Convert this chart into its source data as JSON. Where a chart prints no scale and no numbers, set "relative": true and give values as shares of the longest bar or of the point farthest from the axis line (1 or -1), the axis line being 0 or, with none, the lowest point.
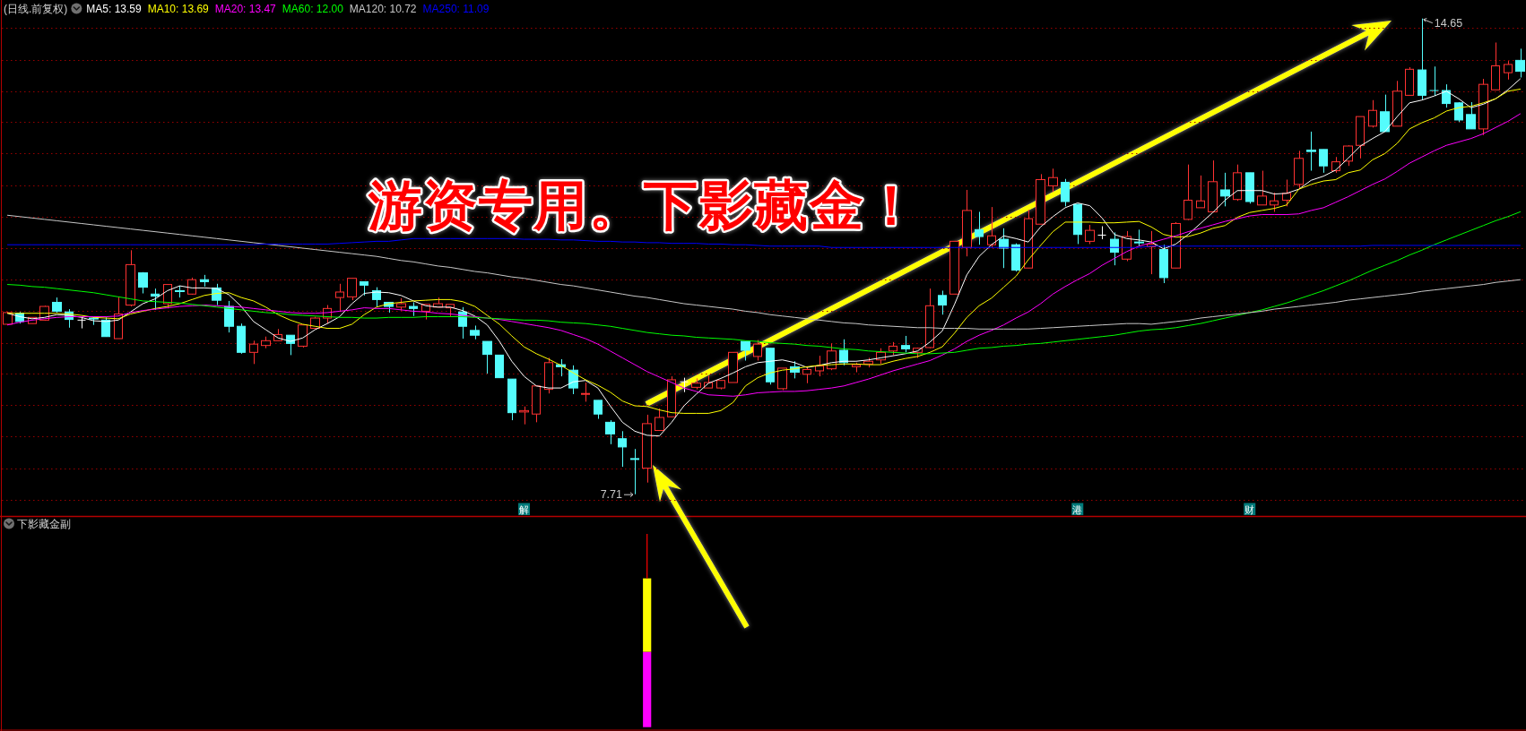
{
  "chart_data": [
    {
      "type": "candlestick",
      "title": "(日线.前复权)",
      "legend": "top left",
      "grid": true,
      "yticks": [
        {
          "value": 14.51,
          "label": null
        },
        {
          "value": 14.05,
          "label": null
        },
        {
          "value": 13.59,
          "label": null
        },
        {
          "value": 13.14,
          "label": null
        },
        {
          "value": 12.68,
          "label": null
        },
        {
          "value": 12.22,
          "label": null
        },
        {
          "value": 11.76,
          "label": null
        },
        {
          "value": 11.3,
          "label": null
        },
        {
          "value": 10.84,
          "label": null
        },
        {
          "value": 10.38,
          "label": null
        },
        {
          "value": 9.92,
          "label": null
        },
        {
          "value": 9.47,
          "label": null
        },
        {
          "value": 9.01,
          "label": null
        },
        {
          "value": 8.55,
          "label": null
        },
        {
          "value": 8.09,
          "label": null
        },
        {
          "value": 7.63,
          "label": null
        }
      ],
      "annotations": [
        "游资专用。下影藏金！",
        "14.65",
        "7.71"
      ],
      "categories": [
        null,
        null,
        null,
        null,
        null,
        null,
        null,
        null,
        null,
        null,
        null,
        null,
        null,
        null,
        null,
        null,
        null,
        null,
        null,
        null,
        null,
        null,
        null,
        null,
        null,
        null,
        null,
        null,
        null,
        null,
        null,
        null,
        null,
        null,
        null,
        null,
        null,
        null,
        null,
        null,
        null,
        null,
        "解",
        null,
        null,
        null,
        null,
        null,
        null,
        null,
        null,
        null,
        null,
        null,
        null,
        null,
        null,
        null,
        null,
        null,
        null,
        null,
        null,
        null,
        null,
        null,
        null,
        null,
        null,
        null,
        null,
        null,
        null,
        null,
        null,
        null,
        null,
        null,
        null,
        null,
        null,
        null,
        null,
        null,
        null,
        null,
        null,
        "港",
        null,
        null,
        null,
        null,
        null,
        null,
        null,
        null,
        null,
        null,
        null,
        null,
        null,
        "财",
        null,
        null,
        null,
        null,
        null,
        null,
        null,
        null,
        null,
        null,
        null,
        null,
        null,
        null,
        null,
        null,
        null,
        null,
        null,
        null,
        null,
        null
      ],
      "ohlc": [
        [
          10.19,
          10.37,
          10.18,
          10.36
        ],
        [
          10.35,
          10.37,
          10.2,
          10.23
        ],
        [
          10.2,
          10.29,
          10.2,
          10.29
        ],
        [
          10.25,
          10.46,
          10.24,
          10.45
        ],
        [
          10.51,
          10.58,
          10.36,
          10.38
        ],
        [
          10.37,
          10.41,
          10.14,
          10.26
        ],
        [
          10.25,
          10.29,
          10.13,
          10.25
        ],
        [
          10.28,
          10.3,
          10.18,
          10.27
        ],
        [
          10.25,
          10.29,
          10.01,
          10.01
        ],
        [
          9.98,
          10.58,
          9.98,
          10.34
        ],
        [
          10.47,
          11.27,
          10.45,
          11.06
        ],
        [
          10.94,
          10.95,
          10.64,
          10.73
        ],
        [
          10.63,
          10.71,
          10.4,
          10.6
        ],
        [
          10.49,
          10.77,
          10.42,
          10.77
        ],
        [
          10.68,
          10.75,
          10.58,
          10.67
        ],
        [
          10.63,
          10.87,
          10.62,
          10.84
        ],
        [
          10.84,
          10.91,
          10.74,
          10.81
        ],
        [
          10.72,
          10.78,
          10.47,
          10.54
        ],
        [
          10.45,
          10.53,
          10.07,
          10.16
        ],
        [
          10.16,
          10.2,
          9.76,
          9.78
        ],
        [
          9.78,
          9.95,
          9.61,
          9.9
        ],
        [
          9.88,
          10.01,
          9.84,
          9.95
        ],
        [
          9.95,
          10.12,
          9.95,
          10.04
        ],
        [
          10.03,
          10.03,
          9.74,
          9.91
        ],
        [
          9.87,
          10.18,
          9.85,
          10.18
        ],
        [
          10.13,
          10.3,
          10.12,
          10.28
        ],
        [
          10.28,
          10.47,
          10.2,
          10.42
        ],
        [
          10.58,
          10.78,
          10.37,
          10.66
        ],
        [
          10.59,
          10.86,
          10.54,
          10.86
        ],
        [
          10.81,
          10.81,
          10.61,
          10.76
        ],
        [
          10.68,
          10.73,
          10.45,
          10.55
        ],
        [
          10.51,
          10.51,
          10.36,
          10.45
        ],
        [
          10.44,
          10.57,
          10.39,
          10.49
        ],
        [
          10.45,
          10.51,
          10.31,
          10.42
        ],
        [
          10.38,
          10.48,
          10.26,
          10.48
        ],
        [
          10.44,
          10.58,
          10.44,
          10.49
        ],
        [
          10.43,
          10.48,
          10.3,
          10.48
        ],
        [
          10.37,
          10.44,
          9.98,
          10.16
        ],
        [
          10.1,
          10.17,
          9.97,
          10.03
        ],
        [
          9.94,
          9.94,
          9.47,
          9.75
        ],
        [
          9.74,
          9.74,
          9.41,
          9.41
        ],
        [
          9.39,
          9.39,
          8.79,
          8.9
        ],
        [
          8.91,
          8.99,
          8.73,
          8.93
        ],
        [
          8.88,
          9.29,
          8.76,
          9.29
        ],
        [
          9.24,
          9.7,
          9.18,
          9.63
        ],
        [
          9.6,
          9.68,
          9.43,
          9.57
        ],
        [
          9.52,
          9.59,
          9.17,
          9.26
        ],
        [
          9.17,
          9.34,
          9.06,
          9.18
        ],
        [
          9.08,
          9.08,
          8.81,
          8.88
        ],
        [
          8.76,
          8.79,
          8.44,
          8.59
        ],
        [
          8.52,
          8.63,
          8.11,
          8.4
        ],
        [
          8.23,
          8.37,
          7.71,
          8.22
        ],
        [
          8.09,
          8.87,
          7.88,
          8.74
        ],
        [
          8.64,
          8.96,
          8.64,
          8.83
        ],
        [
          8.84,
          9.43,
          8.84,
          9.38
        ],
        [
          9.35,
          9.41,
          9.2,
          9.35
        ],
        [
          9.27,
          9.4,
          9.24,
          9.33
        ],
        [
          9.26,
          9.44,
          9.26,
          9.34
        ],
        [
          9.26,
          9.37,
          9.24,
          9.37
        ],
        [
          9.34,
          9.78,
          9.34,
          9.78
        ],
        [
          9.94,
          9.94,
          9.66,
          9.81
        ],
        [
          9.72,
          9.96,
          9.66,
          9.9
        ],
        [
          9.84,
          9.84,
          9.31,
          9.35
        ],
        [
          9.25,
          9.55,
          9.23,
          9.55
        ],
        [
          9.57,
          9.65,
          9.4,
          9.49
        ],
        [
          9.46,
          9.57,
          9.33,
          9.53
        ],
        [
          9.51,
          9.73,
          9.43,
          9.58
        ],
        [
          9.54,
          9.91,
          9.52,
          9.8
        ],
        [
          9.81,
          9.97,
          9.59,
          9.63
        ],
        [
          9.57,
          9.63,
          9.49,
          9.6
        ],
        [
          9.61,
          9.7,
          9.56,
          9.65
        ],
        [
          9.67,
          9.84,
          9.61,
          9.78
        ],
        [
          9.8,
          9.93,
          9.74,
          9.87
        ],
        [
          9.88,
          10.02,
          9.78,
          9.83
        ],
        [
          9.78,
          9.85,
          9.7,
          9.84
        ],
        [
          9.85,
          10.71,
          9.84,
          10.46
        ],
        [
          10.61,
          10.68,
          10.33,
          10.47
        ],
        [
          10.63,
          11.4,
          10.63,
          11.4
        ],
        [
          11.31,
          12.15,
          11.18,
          11.85
        ],
        [
          11.57,
          11.83,
          11.35,
          11.47
        ],
        [
          11.35,
          11.9,
          11.31,
          11.48
        ],
        [
          11.43,
          11.59,
          11.01,
          11.3
        ],
        [
          11.35,
          11.37,
          10.96,
          10.98
        ],
        [
          11.01,
          11.86,
          11.01,
          11.73
        ],
        [
          11.65,
          12.38,
          11.65,
          12.3
        ],
        [
          12.21,
          12.46,
          12.12,
          12.33
        ],
        [
          12.26,
          12.31,
          11.91,
          11.98
        ],
        [
          11.94,
          11.94,
          11.36,
          11.5
        ],
        [
          11.4,
          11.64,
          11.36,
          11.56
        ],
        [
          11.49,
          11.62,
          11.43,
          11.49
        ],
        [
          11.43,
          11.53,
          11.05,
          11.24
        ],
        [
          11.14,
          11.55,
          11.11,
          11.47
        ],
        [
          11.39,
          11.57,
          11.33,
          11.38
        ],
        [
          11.32,
          11.55,
          10.92,
          11.36
        ],
        [
          11.28,
          11.35,
          10.79,
          10.87
        ],
        [
          11.01,
          11.68,
          11.01,
          11.66
        ],
        [
          11.72,
          12.52,
          11.71,
          12.0
        ],
        [
          11.89,
          12.36,
          11.89,
          11.99
        ],
        [
          11.83,
          12.58,
          11.82,
          12.27
        ],
        [
          12.15,
          12.4,
          11.91,
          12.06
        ],
        [
          12.01,
          12.52,
          11.99,
          12.4
        ],
        [
          12.4,
          12.4,
          11.95,
          11.98
        ],
        [
          11.93,
          12.43,
          11.93,
          12.06
        ],
        [
          11.93,
          12.11,
          11.83,
          11.99
        ],
        [
          12.0,
          12.3,
          11.91,
          12.1
        ],
        [
          12.23,
          12.72,
          12.16,
          12.61
        ],
        [
          12.73,
          13.0,
          12.43,
          12.71
        ],
        [
          12.74,
          12.74,
          12.4,
          12.5
        ],
        [
          12.43,
          12.63,
          12.4,
          12.56
        ],
        [
          12.57,
          12.8,
          12.5,
          12.79
        ],
        [
          12.8,
          13.22,
          12.61,
          13.22
        ],
        [
          13.08,
          13.46,
          13.06,
          13.31
        ],
        [
          13.29,
          13.54,
          13.0,
          13.0
        ],
        [
          13.08,
          13.74,
          13.08,
          13.59
        ],
        [
          13.53,
          13.94,
          13.53,
          13.91
        ],
        [
          13.9,
          14.65,
          13.47,
          13.53
        ],
        [
          13.6,
          13.95,
          13.52,
          13.6
        ],
        [
          13.6,
          13.69,
          13.35,
          13.41
        ],
        [
          13.42,
          13.43,
          13.14,
          13.17
        ],
        [
          13.25,
          13.43,
          13.04,
          13.04
        ],
        [
          13.04,
          13.77,
          12.95,
          13.69
        ],
        [
          13.61,
          14.3,
          13.61,
          13.96
        ],
        [
          13.86,
          14.03,
          13.76,
          13.98
        ],
        [
          14.04,
          14.21,
          13.79,
          13.88
        ]
      ],
      "colors": [
        "#ff3232",
        "#54fcfc",
        "#ff3232",
        "#ff3232",
        "#54fcfc",
        "#54fcfc",
        "#ffffff",
        "#54fcfc",
        "#54fcfc",
        "#ff3232",
        "#ff3232",
        "#54fcfc",
        "#54fcfc",
        "#ff3232",
        "#54fcfc",
        "#ff3232",
        "#54fcfc",
        "#54fcfc",
        "#54fcfc",
        "#54fcfc",
        "#ff3232",
        "#ff3232",
        "#ff3232",
        "#54fcfc",
        "#ff3232",
        "#ff3232",
        "#ff3232",
        "#ff3232",
        "#ff3232",
        "#54fcfc",
        "#54fcfc",
        "#54fcfc",
        "#ff3232",
        "#54fcfc",
        "#ff3232",
        "#ff3232",
        "#ff3232",
        "#54fcfc",
        "#54fcfc",
        "#54fcfc",
        "#54fcfc",
        "#54fcfc",
        "#ff3232",
        "#ff3232",
        "#ff3232",
        "#54fcfc",
        "#54fcfc",
        "#ff3232",
        "#54fcfc",
        "#54fcfc",
        "#54fcfc",
        "#54fcfc",
        "#ff3232",
        "#ff3232",
        "#ff3232",
        "#ffffff",
        "#ff3232",
        "#ff3232",
        "#ff3232",
        "#ff3232",
        "#54fcfc",
        "#ff3232",
        "#54fcfc",
        "#ff3232",
        "#54fcfc",
        "#ff3232",
        "#ff3232",
        "#ff3232",
        "#54fcfc",
        "#ff3232",
        "#ff3232",
        "#ff3232",
        "#ff3232",
        "#54fcfc",
        "#ff3232",
        "#ff3232",
        "#54fcfc",
        "#ff3232",
        "#ff3232",
        "#54fcfc",
        "#ff3232",
        "#54fcfc",
        "#54fcfc",
        "#ff3232",
        "#ff3232",
        "#ff3232",
        "#54fcfc",
        "#54fcfc",
        "#ff3232",
        "#ffffff",
        "#54fcfc",
        "#ff3232",
        "#54fcfc",
        "#ff3232",
        "#54fcfc",
        "#ff3232",
        "#ff3232",
        "#ff3232",
        "#ff3232",
        "#54fcfc",
        "#ff3232",
        "#54fcfc",
        "#ff3232",
        "#ff3232",
        "#ff3232",
        "#ff3232",
        "#54fcfc",
        "#54fcfc",
        "#ff3232",
        "#ff3232",
        "#ff3232",
        "#ff3232",
        "#54fcfc",
        "#ff3232",
        "#ff3232",
        "#54fcfc",
        "#54fcfc",
        "#54fcfc",
        "#54fcfc",
        "#54fcfc",
        "#ff3232",
        "#ff3232",
        "#ff3232",
        "#54fcfc"
      ],
      "series": [
        {
          "type": "line",
          "name": "MA5: 13.59",
          "color": "#ffffff",
          "values": [
            10.35,
            10.3,
            10.27,
            10.29,
            10.33,
            10.32,
            10.29,
            10.24,
            10.23,
            10.25,
            10.37,
            10.49,
            10.56,
            10.68,
            10.75,
            10.72,
            10.72,
            10.71,
            10.62,
            10.45,
            10.23,
            10.11,
            9.99,
            9.94,
            9.99,
            10.11,
            10.2,
            10.3,
            10.49,
            10.64,
            10.66,
            10.65,
            10.61,
            10.53,
            10.46,
            10.44,
            10.44,
            10.39,
            10.31,
            10.18,
            9.94,
            9.65,
            9.43,
            9.29,
            9.26,
            9.26,
            9.35,
            9.37,
            9.26,
            9.0,
            8.76,
            8.63,
            8.57,
            8.56,
            8.76,
            9.0,
            9.17,
            9.33,
            9.4,
            9.48,
            9.57,
            9.63,
            9.65,
            9.67,
            9.63,
            9.56,
            9.59,
            9.63,
            9.65,
            9.65,
            9.67,
            9.7,
            9.73,
            9.76,
            9.8,
            9.93,
            10.09,
            10.48,
            10.91,
            11.18,
            11.35,
            11.48,
            11.44,
            11.39,
            11.61,
            11.76,
            11.89,
            11.96,
            11.92,
            11.74,
            11.5,
            11.44,
            11.42,
            11.39,
            11.29,
            11.36,
            11.5,
            11.66,
            11.82,
            12.0,
            12.14,
            12.14,
            12.14,
            12.09,
            12.1,
            12.16,
            12.29,
            12.35,
            12.44,
            12.61,
            12.79,
            12.9,
            13.0,
            13.22,
            13.42,
            13.46,
            13.52,
            13.59,
            13.48,
            13.35,
            13.4,
            13.48,
            13.61,
            13.77
          ]
        },
        {
          "type": "line",
          "name": "MA10: 13.69",
          "color": "#ffff00",
          "values": [
            10.35,
            10.35,
            10.35,
            10.35,
            10.35,
            10.34,
            10.32,
            10.29,
            10.28,
            10.27,
            10.34,
            10.38,
            10.42,
            10.45,
            10.49,
            10.55,
            10.61,
            10.64,
            10.65,
            10.58,
            10.53,
            10.44,
            10.33,
            10.25,
            10.19,
            10.16,
            10.13,
            10.13,
            10.19,
            10.33,
            10.44,
            10.49,
            10.51,
            10.53,
            10.54,
            10.55,
            10.55,
            10.52,
            10.45,
            10.32,
            10.19,
            10.02,
            9.86,
            9.76,
            9.68,
            9.59,
            9.48,
            9.38,
            9.3,
            9.2,
            9.07,
            9.0,
            8.99,
            8.94,
            8.9,
            8.89,
            8.89,
            8.89,
            8.93,
            9.05,
            9.29,
            9.41,
            9.48,
            9.52,
            9.54,
            9.57,
            9.59,
            9.6,
            9.61,
            9.61,
            9.6,
            9.6,
            9.65,
            9.69,
            9.72,
            9.78,
            9.86,
            10.06,
            10.29,
            10.46,
            10.57,
            10.73,
            10.89,
            11.13,
            11.34,
            11.54,
            11.68,
            11.68,
            11.68,
            11.67,
            11.67,
            11.68,
            11.69,
            11.61,
            11.5,
            11.46,
            11.47,
            11.52,
            11.59,
            11.63,
            11.75,
            11.82,
            11.85,
            11.88,
            11.93,
            12.16,
            12.23,
            12.28,
            12.3,
            12.4,
            12.44,
            12.59,
            12.68,
            12.83,
            13.04,
            13.13,
            13.2,
            13.3,
            13.35,
            13.37,
            13.42,
            13.48,
            13.59,
            13.62
          ]
        },
        {
          "type": "line",
          "name": "MA20: 13.47",
          "color": "#ff00ff",
          "values": [
            10.18,
            10.22,
            10.25,
            10.27,
            10.29,
            10.3,
            10.3,
            10.3,
            10.3,
            10.31,
            10.36,
            10.39,
            10.41,
            10.43,
            10.45,
            10.46,
            10.47,
            10.46,
            10.45,
            10.44,
            10.42,
            10.4,
            10.38,
            10.36,
            10.35,
            10.35,
            10.36,
            10.38,
            10.4,
            10.43,
            10.42,
            10.42,
            10.4,
            10.38,
            10.37,
            10.35,
            10.34,
            10.32,
            10.3,
            10.28,
            10.26,
            10.23,
            10.2,
            10.17,
            10.14,
            10.1,
            10.04,
            9.98,
            9.9,
            9.8,
            9.7,
            9.6,
            9.5,
            9.42,
            9.34,
            9.26,
            9.21,
            9.16,
            9.15,
            9.14,
            9.16,
            9.19,
            9.2,
            9.21,
            9.21,
            9.22,
            9.24,
            9.26,
            9.29,
            9.34,
            9.39,
            9.45,
            9.51,
            9.56,
            9.61,
            9.66,
            9.74,
            9.83,
            9.94,
            10.03,
            10.1,
            10.18,
            10.28,
            10.37,
            10.49,
            10.63,
            10.74,
            10.84,
            10.93,
            11.05,
            11.15,
            11.25,
            11.33,
            11.38,
            11.43,
            11.48,
            11.54,
            11.59,
            11.64,
            11.69,
            11.73,
            11.77,
            11.79,
            11.79,
            11.79,
            11.8,
            11.85,
            11.89,
            11.97,
            12.05,
            12.14,
            12.23,
            12.31,
            12.42,
            12.54,
            12.63,
            12.72,
            12.8,
            12.85,
            12.9,
            12.97,
            13.06,
            13.15,
            13.26
          ]
        },
        {
          "type": "line",
          "name": "MA60: 12.00",
          "color": "#00ff00",
          "values": [
            10.77,
            10.76,
            10.74,
            10.73,
            10.71,
            10.69,
            10.67,
            10.65,
            10.62,
            10.59,
            10.56,
            10.53,
            10.52,
            10.51,
            10.5,
            10.48,
            10.46,
            10.44,
            10.42,
            10.4,
            10.38,
            10.36,
            10.35,
            10.33,
            10.32,
            10.31,
            10.3,
            10.29,
            10.29,
            10.28,
            10.28,
            10.29,
            10.29,
            10.29,
            10.3,
            10.3,
            10.3,
            10.3,
            10.29,
            10.28,
            10.27,
            10.26,
            10.25,
            10.25,
            10.24,
            10.22,
            10.21,
            10.2,
            10.18,
            10.16,
            10.13,
            10.1,
            10.07,
            10.05,
            10.03,
            10.02,
            10.0,
            9.99,
            9.98,
            9.97,
            9.95,
            9.94,
            9.92,
            9.91,
            9.9,
            9.88,
            9.87,
            9.85,
            9.83,
            9.82,
            9.8,
            9.79,
            9.78,
            9.77,
            9.76,
            9.76,
            9.77,
            9.78,
            9.81,
            9.84,
            9.85,
            9.87,
            9.88,
            9.9,
            9.91,
            9.93,
            9.95,
            9.97,
            9.99,
            10.01,
            10.03,
            10.06,
            10.09,
            10.11,
            10.12,
            10.14,
            10.17,
            10.2,
            10.24,
            10.28,
            10.32,
            10.36,
            10.4,
            10.45,
            10.5,
            10.56,
            10.62,
            10.68,
            10.75,
            10.82,
            10.9,
            10.98,
            11.05,
            11.12,
            11.2,
            11.27,
            11.35,
            11.42,
            11.49,
            11.56,
            11.63,
            11.7,
            11.76,
            11.83
          ]
        },
        {
          "type": "line",
          "name": "MA120: 10.72",
          "color": "#c8c8c8",
          "values": [
            11.78,
            11.76,
            11.74,
            11.72,
            11.7,
            11.68,
            11.66,
            11.64,
            11.62,
            11.6,
            11.58,
            11.56,
            11.54,
            11.52,
            11.5,
            11.48,
            11.46,
            11.44,
            11.42,
            11.4,
            11.38,
            11.36,
            11.34,
            11.32,
            11.3,
            11.28,
            11.26,
            11.24,
            11.22,
            11.2,
            11.18,
            11.15,
            11.12,
            11.1,
            11.07,
            11.04,
            11.02,
            10.99,
            10.96,
            10.94,
            10.91,
            10.88,
            10.86,
            10.83,
            10.8,
            10.77,
            10.75,
            10.72,
            10.69,
            10.66,
            10.63,
            10.6,
            10.58,
            10.55,
            10.52,
            10.49,
            10.47,
            10.45,
            10.43,
            10.41,
            10.38,
            10.36,
            10.33,
            10.31,
            10.29,
            10.27,
            10.25,
            10.23,
            10.21,
            10.2,
            10.18,
            10.17,
            10.16,
            10.15,
            10.14,
            10.14,
            10.13,
            10.13,
            10.13,
            10.12,
            10.12,
            10.12,
            10.12,
            10.12,
            10.13,
            10.14,
            10.15,
            10.16,
            10.17,
            10.18,
            10.19,
            10.2,
            10.2,
            10.19,
            10.21,
            10.23,
            10.25,
            10.28,
            10.3,
            10.32,
            10.34,
            10.36,
            10.38,
            10.41,
            10.43,
            10.45,
            10.47,
            10.49,
            10.51,
            10.54,
            10.56,
            10.58,
            10.6,
            10.62,
            10.64,
            10.67,
            10.69,
            10.71,
            10.73,
            10.75,
            10.77,
            10.8,
            10.82,
            10.84
          ]
        },
        {
          "type": "line",
          "name": "MA250: 11.09",
          "color": "#0000ff",
          "values": [
            11.35,
            11.35,
            11.35,
            11.35,
            11.35,
            11.35,
            11.35,
            11.35,
            11.35,
            11.35,
            11.35,
            11.35,
            11.35,
            11.35,
            11.35,
            11.35,
            11.35,
            11.35,
            11.35,
            11.35,
            11.35,
            11.36,
            11.36,
            11.36,
            11.36,
            11.36,
            11.36,
            11.37,
            11.38,
            11.39,
            11.4,
            11.4,
            11.42,
            11.44,
            11.44,
            11.44,
            11.44,
            11.44,
            11.44,
            11.44,
            11.44,
            11.44,
            11.43,
            11.43,
            11.43,
            11.42,
            11.42,
            11.41,
            11.4,
            11.4,
            11.39,
            11.39,
            11.38,
            11.38,
            11.37,
            11.37,
            11.37,
            11.36,
            11.36,
            11.35,
            11.35,
            11.34,
            11.33,
            11.33,
            11.33,
            11.33,
            11.33,
            11.31,
            11.31,
            11.31,
            11.31,
            11.31,
            11.31,
            11.31,
            11.31,
            11.31,
            11.31,
            11.31,
            11.31,
            11.31,
            11.31,
            11.31,
            11.31,
            11.31,
            11.31,
            11.31,
            11.31,
            11.31,
            11.31,
            11.31,
            11.31,
            11.31,
            11.31,
            11.33,
            11.33,
            11.33,
            11.33,
            11.33,
            11.33,
            11.33,
            11.33,
            11.33,
            11.33,
            11.33,
            11.33,
            11.33,
            11.33,
            11.33,
            11.33,
            11.33,
            11.33,
            11.34,
            11.34,
            11.34,
            11.34,
            11.34,
            11.34,
            11.34,
            11.34,
            11.34,
            11.34,
            11.34,
            11.34,
            11.34
          ]
        }
      ]
    },
    {
      "type": "bar",
      "title": "下影藏金副",
      "stacked": true,
      "relative": true,
      "categories": [
        null,
        null,
        null,
        null,
        null,
        null,
        null,
        null,
        null,
        null,
        null,
        null,
        null,
        null,
        null,
        null,
        null,
        null,
        null,
        null,
        null,
        null,
        null,
        null,
        null,
        null,
        null,
        null,
        null,
        null,
        null,
        null,
        null,
        null,
        null,
        null,
        null,
        null,
        null,
        null,
        null,
        null,
        null,
        null,
        null,
        null,
        null,
        null,
        null,
        null,
        null,
        null,
        null,
        null,
        null,
        null,
        null,
        null,
        null,
        null,
        null,
        null,
        null,
        null,
        null,
        null,
        null,
        null,
        null,
        null,
        null,
        null,
        null,
        null,
        null,
        null,
        null,
        null,
        null,
        null,
        null,
        null,
        null,
        null,
        null,
        null,
        null,
        null,
        null,
        null,
        null,
        null,
        null,
        null,
        null,
        null,
        null,
        null,
        null,
        null,
        null,
        null,
        null,
        null,
        null,
        null,
        null,
        null,
        null,
        null,
        null,
        null,
        null,
        null,
        null,
        null,
        null,
        null,
        null,
        null,
        null,
        null,
        null,
        null
      ],
      "series": [
        {
          "color": "#ff00ff",
          "values": [
            null,
            null,
            null,
            null,
            null,
            null,
            null,
            null,
            null,
            null,
            null,
            null,
            null,
            null,
            null,
            null,
            null,
            null,
            null,
            null,
            null,
            null,
            null,
            null,
            null,
            null,
            null,
            null,
            null,
            null,
            null,
            null,
            null,
            null,
            null,
            null,
            null,
            null,
            null,
            null,
            null,
            null,
            null,
            null,
            null,
            null,
            null,
            null,
            null,
            null,
            null,
            null,
            0.39,
            null,
            null,
            null,
            null,
            null,
            null,
            null,
            null,
            null,
            null,
            null,
            null,
            null,
            null,
            null,
            null,
            null,
            null,
            null,
            null,
            null,
            null,
            null,
            null,
            null,
            null,
            null,
            null,
            null,
            null,
            null,
            null,
            null,
            null,
            null,
            null,
            null,
            null,
            null,
            null,
            null,
            null,
            null,
            null,
            null,
            null,
            null,
            null,
            null,
            null,
            null,
            null,
            null,
            null,
            null,
            null,
            null,
            null,
            null,
            null,
            null,
            null,
            null,
            null,
            null,
            null,
            null,
            null,
            null,
            null,
            null
          ]
        },
        {
          "color": "#ffff00",
          "values": [
            null,
            null,
            null,
            null,
            null,
            null,
            null,
            null,
            null,
            null,
            null,
            null,
            null,
            null,
            null,
            null,
            null,
            null,
            null,
            null,
            null,
            null,
            null,
            null,
            null,
            null,
            null,
            null,
            null,
            null,
            null,
            null,
            null,
            null,
            null,
            null,
            null,
            null,
            null,
            null,
            null,
            null,
            null,
            null,
            null,
            null,
            null,
            null,
            null,
            null,
            null,
            null,
            0.38,
            null,
            null,
            null,
            null,
            null,
            null,
            null,
            null,
            null,
            null,
            null,
            null,
            null,
            null,
            null,
            null,
            null,
            null,
            null,
            null,
            null,
            null,
            null,
            null,
            null,
            null,
            null,
            null,
            null,
            null,
            null,
            null,
            null,
            null,
            null,
            null,
            null,
            null,
            null,
            null,
            null,
            null,
            null,
            null,
            null,
            null,
            null,
            null,
            null,
            null,
            null,
            null,
            null,
            null,
            null,
            null,
            null,
            null,
            null,
            null,
            null,
            null,
            null,
            null,
            null,
            null,
            null,
            null,
            null,
            null,
            null
          ]
        },
        {
          "color": "#ff0000",
          "values": [
            null,
            null,
            null,
            null,
            null,
            null,
            null,
            null,
            null,
            null,
            null,
            null,
            null,
            null,
            null,
            null,
            null,
            null,
            null,
            null,
            null,
            null,
            null,
            null,
            null,
            null,
            null,
            null,
            null,
            null,
            null,
            null,
            null,
            null,
            null,
            null,
            null,
            null,
            null,
            null,
            null,
            null,
            null,
            null,
            null,
            null,
            null,
            null,
            null,
            null,
            null,
            null,
            0.23,
            null,
            null,
            null,
            null,
            null,
            null,
            null,
            null,
            null,
            null,
            null,
            null,
            null,
            null,
            null,
            null,
            null,
            null,
            null,
            null,
            null,
            null,
            null,
            null,
            null,
            null,
            null,
            null,
            null,
            null,
            null,
            null,
            null,
            null,
            null,
            null,
            null,
            null,
            null,
            null,
            null,
            null,
            null,
            null,
            null,
            null,
            null,
            null,
            null,
            null,
            null,
            null,
            null,
            null,
            null,
            null,
            null,
            null,
            null,
            null,
            null,
            null,
            null,
            null,
            null,
            null,
            null,
            null,
            null,
            null,
            null
          ]
        }
      ]
    }
  ]
}
